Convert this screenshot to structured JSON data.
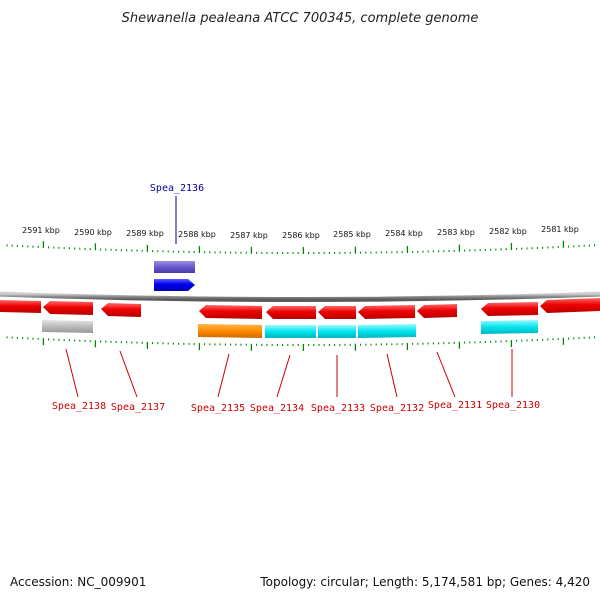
{
  "title": "Shewanella pealeana ATCC 700345, complete genome",
  "ruler": {
    "unit": "kbp",
    "labels": [
      "2591 kbp",
      "2590 kbp",
      "2589 kbp",
      "2588 kbp",
      "2587 kbp",
      "2586 kbp",
      "2585 kbp",
      "2584 kbp",
      "2583 kbp",
      "2582 kbp",
      "2581 kbp"
    ]
  },
  "genes": [
    {
      "id": "Spea_2136",
      "strand": "+",
      "color": "#0000ee",
      "label_color": "#000099"
    },
    {
      "id": "Spea_2138",
      "strand": "-",
      "color": "#ee0000",
      "label_color": "#cc0000"
    },
    {
      "id": "Spea_2137",
      "strand": "-",
      "color": "#ee0000",
      "label_color": "#cc0000"
    },
    {
      "id": "Spea_2135",
      "strand": "-",
      "color": "#ee0000",
      "label_color": "#cc0000"
    },
    {
      "id": "Spea_2134",
      "strand": "-",
      "color": "#ee0000",
      "label_color": "#cc0000"
    },
    {
      "id": "Spea_2133",
      "strand": "-",
      "color": "#ee0000",
      "label_color": "#cc0000"
    },
    {
      "id": "Spea_2132",
      "strand": "-",
      "color": "#ee0000",
      "label_color": "#cc0000"
    },
    {
      "id": "Spea_2131",
      "strand": "-",
      "color": "#ee0000",
      "label_color": "#cc0000"
    },
    {
      "id": "Spea_2130",
      "strand": "-",
      "color": "#ee0000",
      "label_color": "#cc0000"
    }
  ],
  "colors": {
    "backbone": "#888888",
    "ticks": "#008800",
    "forward_gene": "#0000ee",
    "forward_track": "#6a5acd",
    "reverse_gene": "#ee0000",
    "cog_gray": "#bbbbbb",
    "cog_orange": "#ff8c00",
    "cog_cyan": "#00e5ee"
  },
  "footer": {
    "accession": "Accession: NC_009901",
    "summary": "Topology: circular; Length: 5,174,581 bp; Genes: 4,420"
  }
}
